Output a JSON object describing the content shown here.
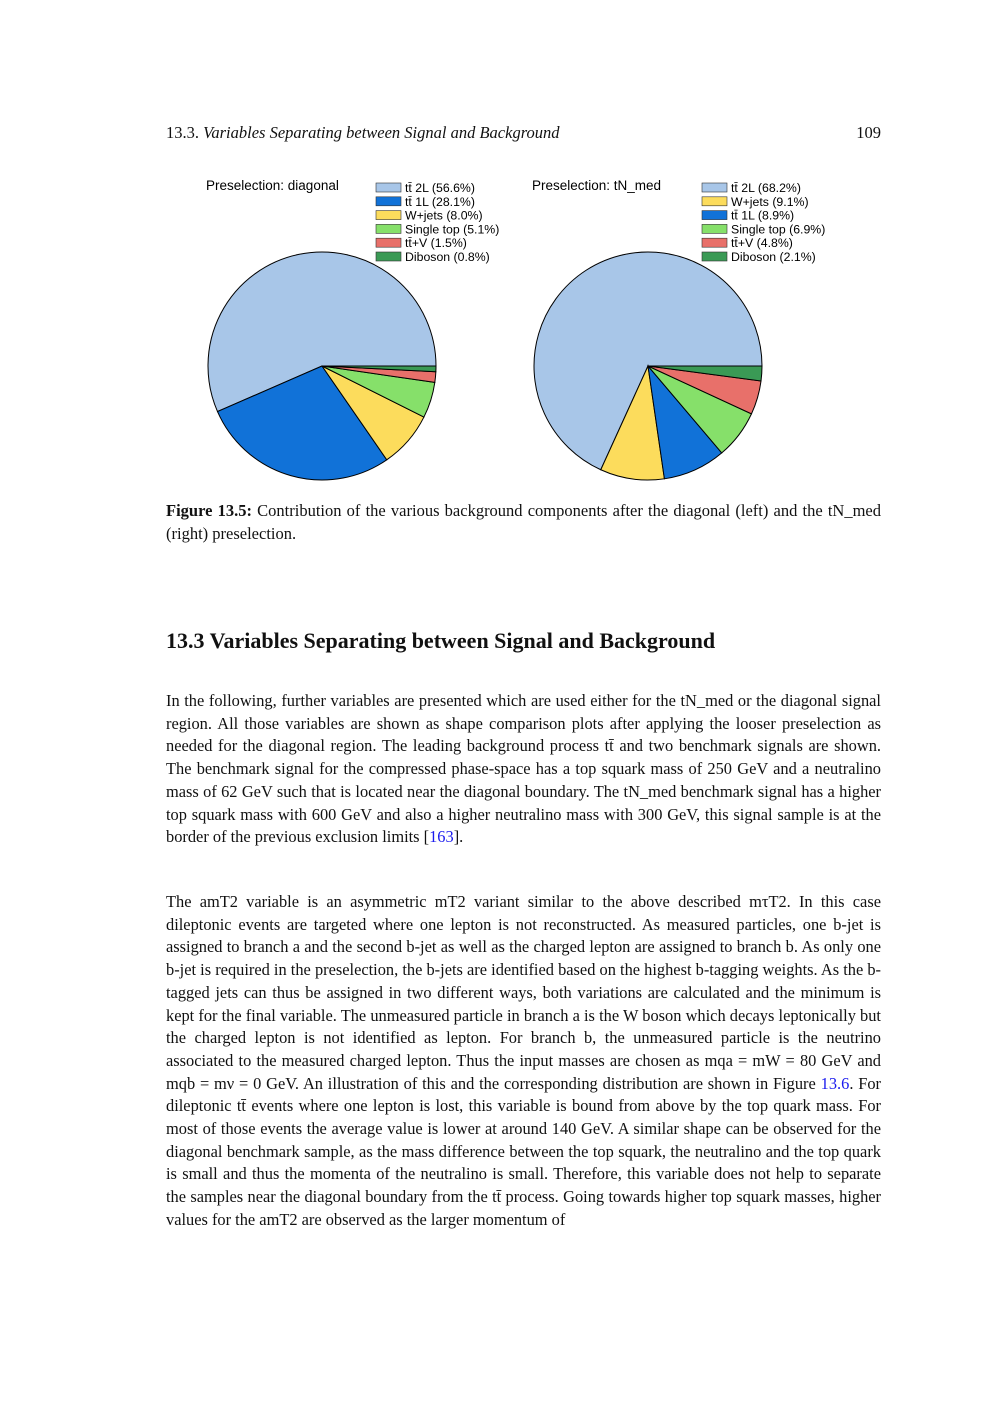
{
  "header": {
    "section": "13.3.",
    "title": "Variables Separating between Signal and Background",
    "page": "109"
  },
  "chart_data": [
    {
      "type": "pie",
      "title": "Preselection: diagonal",
      "start_angle_deg": 0,
      "direction": "counterclockwise",
      "legend": "top-right",
      "slices": [
        {
          "label": "tt̄ 2L (56.6%)",
          "value": 56.6,
          "color": "#a8c6e8"
        },
        {
          "label": "tt̄ 1L (28.1%)",
          "value": 28.1,
          "color": "#1172d8"
        },
        {
          "label": "W+jets (8.0%)",
          "value": 8.0,
          "color": "#fcdc5c"
        },
        {
          "label": "Single top (5.1%)",
          "value": 5.1,
          "color": "#86e06a"
        },
        {
          "label": "tt̄+V (1.5%)",
          "value": 1.5,
          "color": "#e8706a"
        },
        {
          "label": "Diboson (0.8%)",
          "value": 0.8,
          "color": "#3a9a55"
        }
      ]
    },
    {
      "type": "pie",
      "title": "Preselection: tN_med",
      "start_angle_deg": 0,
      "direction": "counterclockwise",
      "legend": "top-right",
      "slices": [
        {
          "label": "tt̄ 2L (68.2%)",
          "value": 68.2,
          "color": "#a8c6e8"
        },
        {
          "label": "W+jets (9.1%)",
          "value": 9.1,
          "color": "#fcdc5c"
        },
        {
          "label": "tt̄ 1L (8.9%)",
          "value": 8.9,
          "color": "#1172d8"
        },
        {
          "label": "Single top (6.9%)",
          "value": 6.9,
          "color": "#86e06a"
        },
        {
          "label": "tt̄+V (4.8%)",
          "value": 4.8,
          "color": "#e8706a"
        },
        {
          "label": "Diboson (2.1%)",
          "value": 2.1,
          "color": "#3a9a55"
        }
      ]
    }
  ],
  "caption": {
    "label": "Figure 13.5:",
    "text": " Contribution of the various background components after the diagonal (left) and the tN_med (right) preselection."
  },
  "section": {
    "title": "13.3  Variables Separating between Signal and Background"
  },
  "paragraphs": [
    {
      "text": "In the following, further variables are presented which are used either for the tN_med or the diagonal signal region. All those variables are shown as shape comparison plots after applying the looser preselection as needed for the diagonal region. The leading background process tt̄ and two benchmark signals are shown. The benchmark signal for the compressed phase-space has a top squark mass of 250 GeV and a neutralino mass of 62 GeV such that is located near the diagonal boundary. The tN_med benchmark signal has a higher top squark mass with 600 GeV and also a higher neutralino mass with 300 GeV, this signal sample is at the border of the previous exclusion limits [",
      "ref": "163",
      "after": "]."
    },
    {
      "text": "The amT2 variable is an asymmetric mT2 variant similar to the above described mτT2. In this case dileptonic events are targeted where one lepton is not reconstructed. As measured particles, one b-jet is assigned to branch a and the second b-jet as well as the charged lepton are assigned to branch b. As only one b-jet is required in the preselection, the b-jets are identified based on the highest b-tagging weights. As the b-tagged jets can thus be assigned in two different ways, both variations are calculated and the minimum is kept for the final variable. The unmeasured particle in branch a is the W boson which decays leptonically but the charged lepton is not identified as lepton. For branch b, the unmeasured particle is the neutrino associated to the measured charged lepton. Thus the input masses are chosen as mqa = mW = 80 GeV and mqb = mν = 0 GeV. An illustration of this and the corresponding distribution are shown in Figure ",
      "ref": "13.6",
      "after": ". For dileptonic tt̄ events where one lepton is lost, this variable is bound from above by the top quark mass. For most of those events the average value is lower at around 140 GeV. A similar shape can be observed for the diagonal benchmark sample, as the mass difference between the top squark, the neutralino and the top quark is small and thus the momenta of the neutralino is small. Therefore, this variable does not help to separate the samples near the diagonal boundary from the tt̄ process. Going towards higher top squark masses, higher values for the amT2 are observed as the larger momentum of"
    }
  ]
}
